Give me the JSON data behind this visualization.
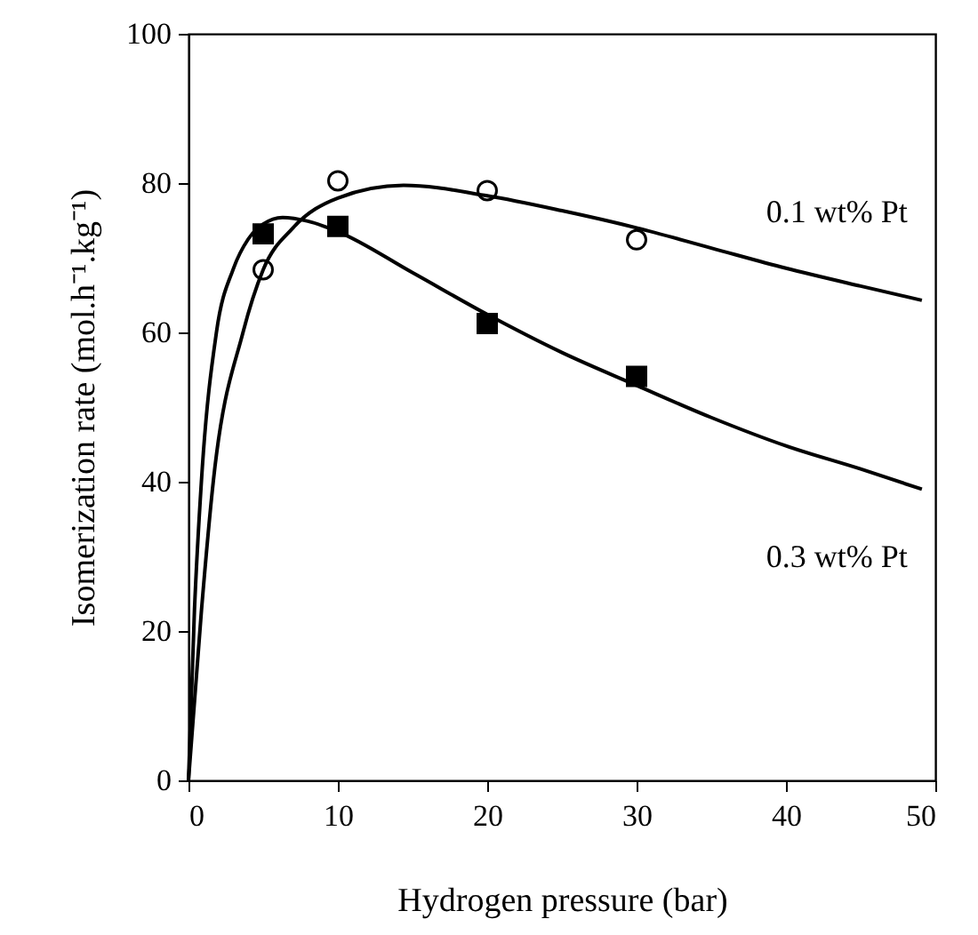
{
  "chart_data": {
    "type": "scatter",
    "xlabel": "Hydrogen pressure (bar)",
    "ylabel": "Isomerization rate (mol.h⁻¹.kg⁻¹)",
    "xlim": [
      0,
      50
    ],
    "xticks": [
      0,
      10,
      20,
      30,
      40,
      50
    ],
    "ylim": [
      0,
      100
    ],
    "yticks": [
      0,
      20,
      40,
      60,
      80,
      100
    ],
    "grid": false,
    "series": [
      {
        "marker": "circle",
        "color": "#000000",
        "x": [
          5,
          10,
          20,
          30
        ],
        "values": [
          68.4,
          80.3,
          79.0,
          72.4
        ]
      },
      {
        "marker": "square",
        "color": "#000000",
        "x": [
          5,
          10,
          20,
          30
        ],
        "values": [
          73.2,
          74.2,
          61.2,
          54.1
        ]
      },
      {
        "type": "line",
        "name": "0.1 wt% Pt",
        "marker": "none",
        "color": "#000000",
        "x": [
          0,
          0.87,
          1.67,
          3.65,
          5,
          7,
          10,
          14.4,
          20,
          25,
          30,
          35,
          40,
          45,
          49.1
        ],
        "values": [
          0,
          22.8,
          40.2,
          60,
          68.4,
          74,
          78,
          79.7,
          78.3,
          76.3,
          74.0,
          71.3,
          68.6,
          66.2,
          64.3
        ]
      },
      {
        "type": "line",
        "name": "0.3 wt% Pt",
        "marker": "none",
        "color": "#000000",
        "x": [
          0,
          0.4,
          0.87,
          1.87,
          3,
          4,
          5,
          6.3,
          8,
          10,
          15,
          20,
          25,
          30,
          35,
          40,
          45,
          49.1
        ],
        "values": [
          0,
          22.8,
          40.2,
          60,
          68.5,
          72.5,
          74.5,
          75.4,
          74.9,
          73.5,
          68,
          62.4,
          57.3,
          52.9,
          48.6,
          44.8,
          41.7,
          39.0
        ]
      }
    ]
  }
}
